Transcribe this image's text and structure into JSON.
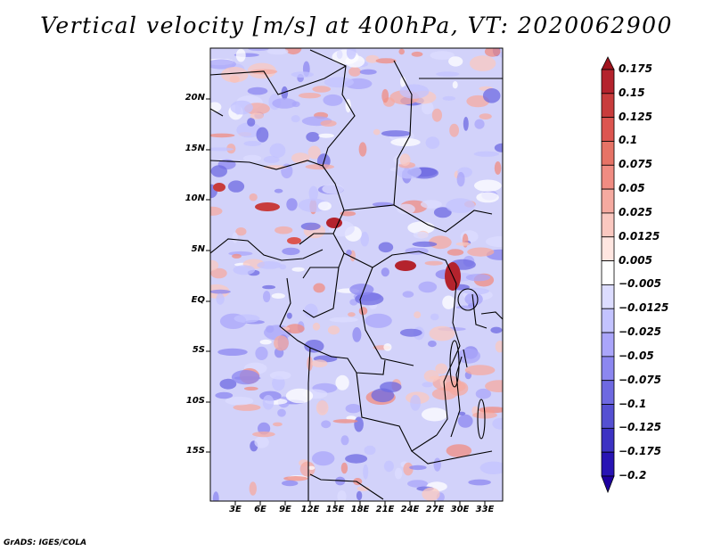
{
  "title": "Vertical velocity [m/s] at 400hPa, VT: 2020062900",
  "credit": "GrADS: IGES/COLA",
  "lat_labels": [
    "20N",
    "15N",
    "10N",
    "5N",
    "EQ",
    "5S",
    "10S",
    "15S"
  ],
  "lon_labels": [
    "3E",
    "6E",
    "9E",
    "12E",
    "15E",
    "18E",
    "21E",
    "24E",
    "27E",
    "30E",
    "33E"
  ],
  "colorbar": {
    "labels": [
      "0.175",
      "0.15",
      "0.125",
      "0.1",
      "0.075",
      "0.05",
      "0.025",
      "0.0125",
      "0.005",
      "−0.005",
      "−0.0125",
      "−0.025",
      "−0.05",
      "−0.075",
      "−0.1",
      "−0.125",
      "−0.175",
      "−0.2"
    ],
    "colors": [
      "#a0141e",
      "#b4232d",
      "#c83c3c",
      "#dc5550",
      "#e67366",
      "#f08c82",
      "#f5aaa0",
      "#fac8c0",
      "#ffe6e1",
      "#ffffff",
      "#dcdcff",
      "#c3c3ff",
      "#aaa5fa",
      "#8c87f0",
      "#6e69e1",
      "#5550d2",
      "#3c32c3",
      "#2814b4",
      "#1e00a0"
    ]
  }
}
